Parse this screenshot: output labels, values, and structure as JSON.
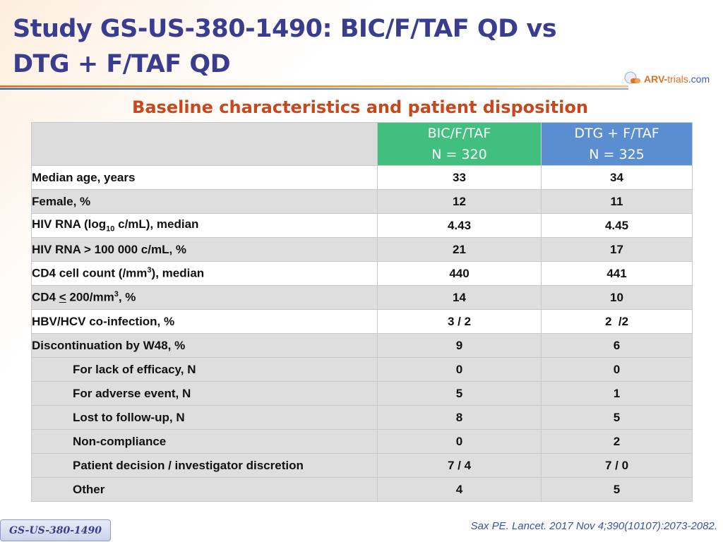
{
  "title_line1": "Study GS-US-380-1490: BIC/F/TAF QD vs",
  "title_line2": "DTG + F/TAF QD",
  "logo": {
    "brand": "ARV-",
    "brand2": "trials",
    "suffix": ".com",
    "accent": "#e2701e",
    "secondary": "#3a5fb0"
  },
  "subtitle": "Baseline characteristics and patient disposition",
  "table": {
    "columns": [
      {
        "line1": "BIC/F/TAF",
        "line2": "N = 320",
        "color": "#41bf7f"
      },
      {
        "line1": "DTG + F/TAF",
        "line2": "N = 325",
        "color": "#5b8ed0"
      }
    ],
    "rows": [
      {
        "label": "Median age, years",
        "v1": "33",
        "v2": "34"
      },
      {
        "label": "Female, %",
        "v1": "12",
        "v2": "11"
      },
      {
        "label_pre": "HIV RNA (log",
        "label_sub": "10",
        "label_post": " c/mL), median",
        "v1": "4.43",
        "v2": "4.45"
      },
      {
        "label": "HIV RNA > 100 000 c/mL, %",
        "v1": "21",
        "v2": "17"
      },
      {
        "label_pre": "CD4 cell count (/mm",
        "label_sup": "3",
        "label_post": "), median",
        "v1": "440",
        "v2": "441"
      },
      {
        "label_pre": "CD4 ",
        "label_u": "<",
        "label_mid": " 200/mm",
        "label_sup": "3",
        "label_post": ", %",
        "v1": "14",
        "v2": "10"
      },
      {
        "label": "HBV/HCV co-infection, %",
        "v1": "3 / 2",
        "v2": "2  /2"
      },
      {
        "label": "Discontinuation by W48, %",
        "v1": "9",
        "v2": "6"
      },
      {
        "label": "For lack of efficacy, N",
        "v1": "0",
        "v2": "0"
      },
      {
        "label": "For adverse event, N",
        "v1": "5",
        "v2": "1"
      },
      {
        "label": "Lost to follow-up, N",
        "v1": "8",
        "v2": "5"
      },
      {
        "label": "Non-compliance",
        "v1": "0",
        "v2": "2"
      },
      {
        "label": "Patient decision / investigator discretion",
        "v1": "7 / 4",
        "v2": "7 / 0"
      },
      {
        "label": "Other",
        "v1": "4",
        "v2": "5"
      }
    ]
  },
  "footer_tag": "GS-US-380-1490",
  "citation": "Sax PE. Lancet. 2017 Nov 4;390(10107):2073-2082."
}
